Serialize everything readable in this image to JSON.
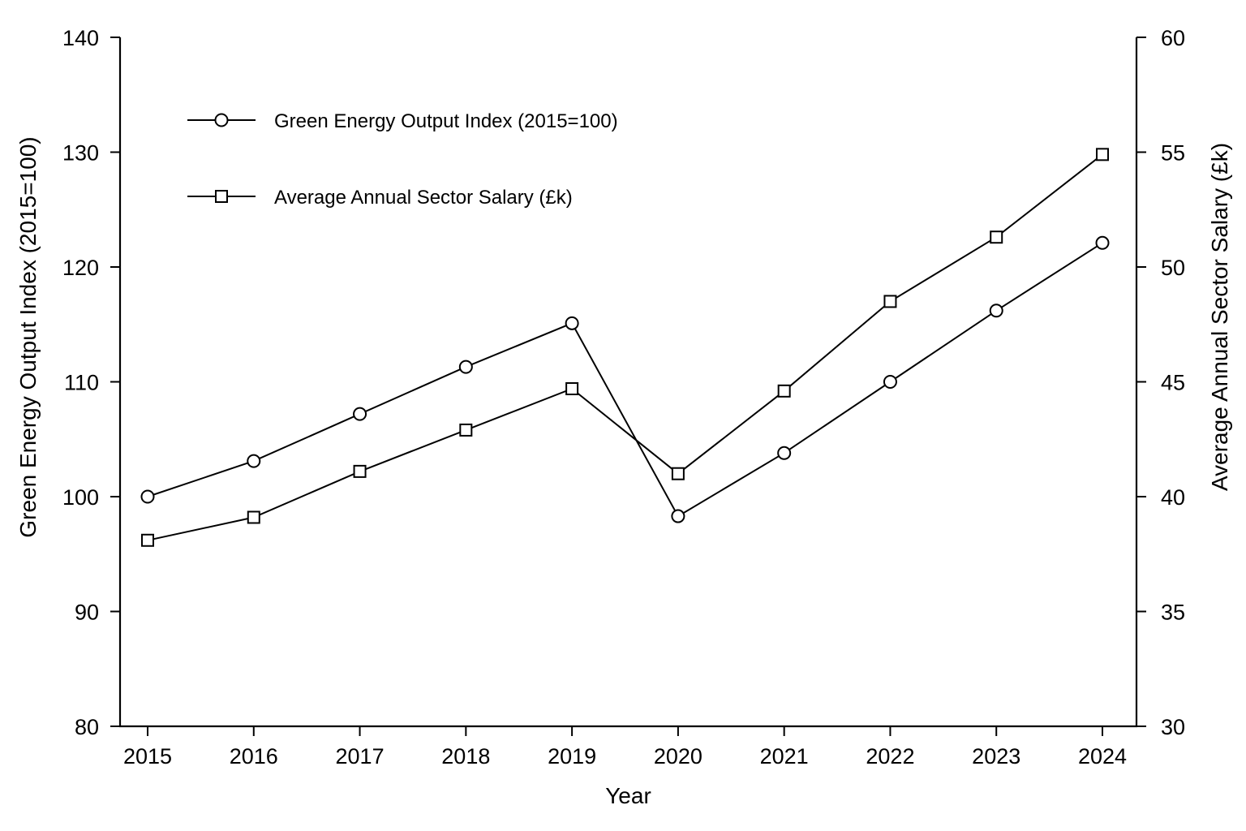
{
  "chart_data": {
    "type": "line",
    "title": "",
    "xlabel": "Year",
    "ylabel": "Green Energy Output Index (2015=100)",
    "y2label": "Average Annual Sector Salary (£k)",
    "categories": [
      "2015",
      "2016",
      "2017",
      "2018",
      "2019",
      "2020",
      "2021",
      "2022",
      "2023",
      "2024"
    ],
    "ylim": [
      80,
      140
    ],
    "y2lim": [
      30,
      60
    ],
    "yticks": [
      80,
      90,
      100,
      110,
      120,
      130,
      140
    ],
    "y2ticks": [
      30,
      35,
      40,
      45,
      50,
      55,
      60
    ],
    "grid": false,
    "legend_position": "top-left",
    "series": [
      {
        "name": "Green Energy Output Index (2015=100)",
        "axis": "left",
        "marker": "circle",
        "color": "#000000",
        "values": [
          100,
          103.1,
          107.2,
          111.3,
          115.1,
          98.3,
          103.8,
          110.0,
          116.2,
          122.1
        ]
      },
      {
        "name": "Average Annual Sector Salary (£k)",
        "axis": "right",
        "marker": "square",
        "color": "#000000",
        "values": [
          38.1,
          39.1,
          41.1,
          42.9,
          44.7,
          41.0,
          44.6,
          48.5,
          51.3,
          54.9
        ]
      }
    ]
  }
}
